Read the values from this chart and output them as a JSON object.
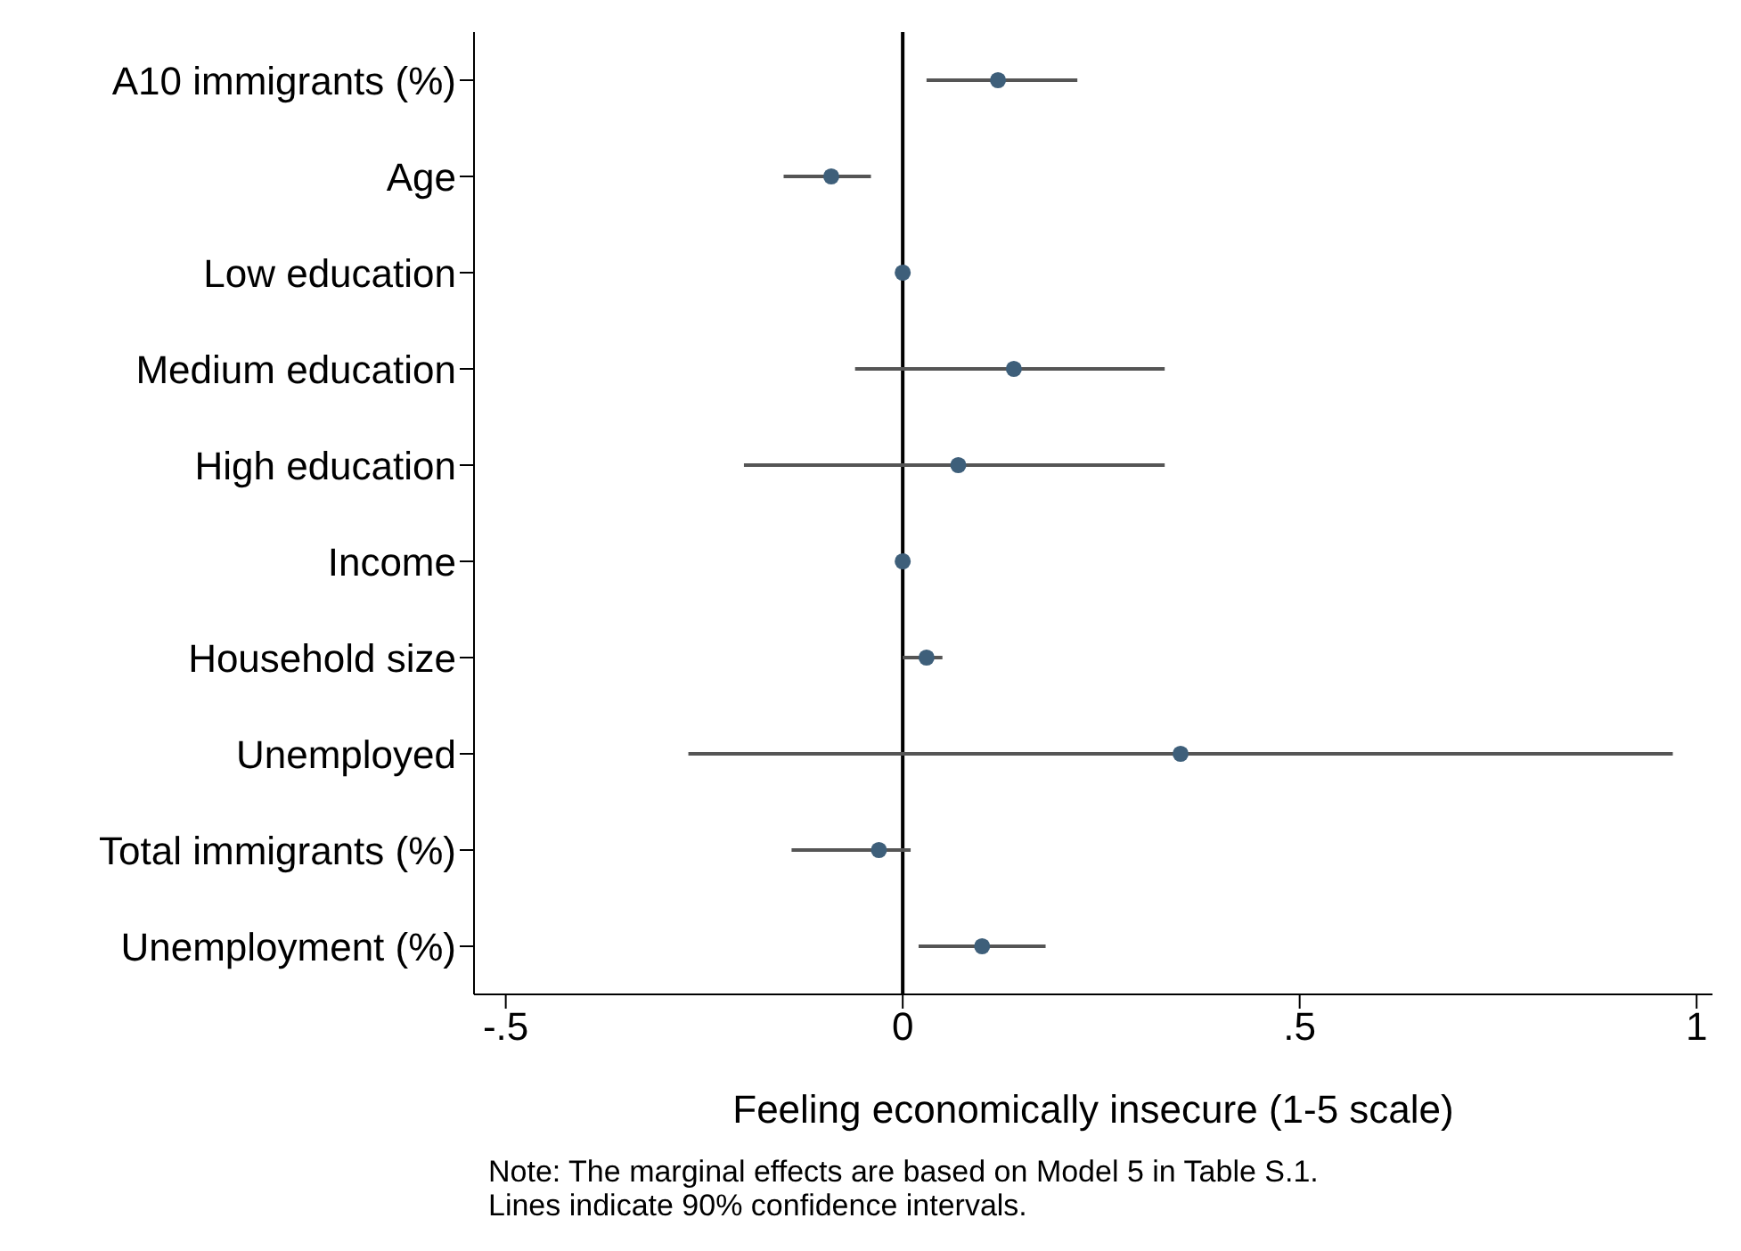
{
  "chart_data": {
    "type": "scatter",
    "orientation": "horizontal",
    "xlabel": "Feeling economically insecure (1-5 scale)",
    "categories": [
      "A10 immigrants (%)",
      "Age",
      "Low education",
      "Medium education",
      "High education",
      "Income",
      "Household size",
      "Unemployed",
      "Total immigrants (%)",
      "Unemployment (%)"
    ],
    "series": [
      {
        "color": "#3e5f7a",
        "values": [
          0.12,
          -0.09,
          0,
          0.14,
          0.07,
          0,
          0.03,
          0.35,
          -0.03,
          0.1
        ],
        "errors": [
          [
            0.03,
            0.22
          ],
          [
            -0.15,
            -0.04
          ],
          null,
          [
            -0.06,
            0.33
          ],
          [
            -0.2,
            0.33
          ],
          null,
          [
            0.0,
            0.05
          ],
          [
            -0.27,
            0.97
          ],
          [
            -0.14,
            0.01
          ],
          [
            0.02,
            0.18
          ]
        ]
      }
    ],
    "xlim": [
      -0.54,
      1.02
    ],
    "xticks": [
      {
        "value": -0.5,
        "label": "-.5"
      },
      0,
      {
        "value": 0.5,
        "label": ".5"
      },
      1
    ],
    "ref_lines": [
      {
        "axis": "x",
        "value": 0,
        "color": "#000000"
      }
    ],
    "grid": false,
    "marker": "circle",
    "annotations": [
      "Note: The marginal effects are based on Model 5 in Table S.1.",
      "Lines indicate 90% confidence intervals."
    ]
  }
}
